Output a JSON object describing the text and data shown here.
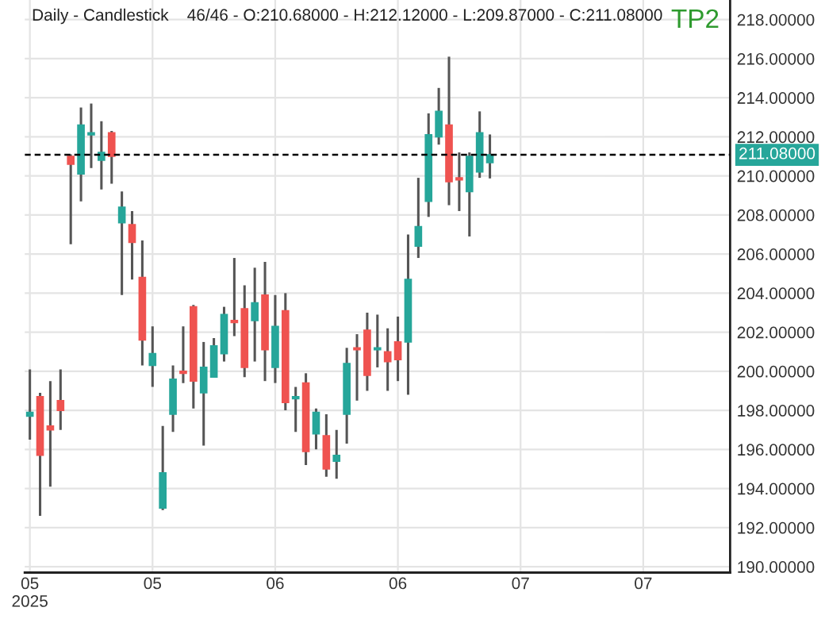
{
  "chart_data": {
    "type": "candlestick",
    "title": "Daily - Candlestick    46/46 - O:210.68000 - H:212.12000 - L:209.87000 - C:211.08000",
    "annotations": [
      "TP2"
    ],
    "categories": [
      "05\n2025",
      null,
      null,
      null,
      null,
      null,
      null,
      null,
      null,
      null,
      null,
      null,
      "05",
      null,
      null,
      null,
      null,
      null,
      null,
      null,
      null,
      null,
      null,
      null,
      "06",
      null,
      null,
      null,
      null,
      null,
      null,
      null,
      null,
      null,
      null,
      null,
      "06",
      null,
      null,
      null,
      null,
      null,
      null,
      null,
      null,
      null,
      null,
      null,
      "07",
      null,
      null,
      null,
      null,
      null,
      null,
      null,
      null,
      null,
      null,
      null,
      "07",
      null,
      null,
      null,
      null,
      null,
      null,
      null,
      null
    ],
    "ohlc": [
      [
        197.7,
        200.1,
        196.5,
        197.9
      ],
      [
        198.7,
        198.9,
        192.6,
        195.7
      ],
      [
        197.2,
        199.5,
        194.1,
        197.0
      ],
      [
        198.5,
        200.1,
        197.0,
        198.0
      ],
      [
        211.0,
        211.1,
        206.5,
        210.6
      ],
      [
        210.1,
        213.5,
        208.7,
        212.6
      ],
      [
        212.1,
        213.7,
        210.4,
        212.2
      ],
      [
        210.8,
        212.8,
        209.3,
        211.2
      ],
      [
        212.2,
        212.3,
        209.6,
        211.0
      ],
      [
        207.6,
        209.2,
        203.9,
        208.4
      ],
      [
        207.5,
        208.2,
        204.7,
        206.6
      ],
      [
        204.8,
        206.7,
        200.3,
        201.6
      ],
      [
        200.3,
        202.3,
        199.2,
        200.9
      ],
      [
        193.0,
        197.2,
        192.9,
        194.8
      ],
      [
        197.8,
        200.3,
        196.9,
        199.6
      ],
      [
        200.0,
        202.3,
        199.4,
        199.9
      ],
      [
        203.3,
        203.4,
        198.1,
        199.5
      ],
      [
        198.9,
        201.5,
        196.2,
        200.2
      ],
      [
        199.7,
        201.7,
        199.7,
        201.3
      ],
      [
        200.9,
        203.3,
        200.5,
        202.9
      ],
      [
        202.6,
        205.8,
        201.8,
        202.5
      ],
      [
        203.2,
        204.4,
        199.7,
        200.2
      ],
      [
        202.6,
        205.3,
        200.5,
        203.5
      ],
      [
        203.9,
        205.6,
        199.5,
        201.1
      ],
      [
        200.2,
        203.9,
        199.4,
        202.3
      ],
      [
        203.1,
        204.0,
        198.0,
        198.4
      ],
      [
        198.6,
        199.2,
        196.9,
        198.7
      ],
      [
        199.4,
        199.9,
        195.2,
        195.9
      ],
      [
        196.8,
        198.1,
        196.0,
        197.9
      ],
      [
        196.7,
        197.8,
        194.6,
        195.0
      ],
      [
        195.4,
        197.0,
        194.5,
        195.7
      ],
      [
        197.8,
        201.2,
        196.3,
        200.4
      ],
      [
        201.2,
        201.9,
        198.5,
        201.1
      ],
      [
        202.1,
        203.0,
        199.0,
        199.8
      ],
      [
        201.1,
        202.9,
        200.2,
        201.2
      ],
      [
        201.0,
        202.2,
        199.0,
        200.5
      ],
      [
        201.5,
        202.8,
        199.5,
        200.6
      ],
      [
        201.5,
        207.0,
        198.8,
        204.7
      ],
      [
        206.4,
        209.9,
        205.8,
        207.4
      ],
      [
        208.7,
        213.2,
        207.9,
        212.1
      ],
      [
        212.0,
        214.5,
        211.6,
        213.3
      ],
      [
        212.6,
        216.1,
        208.5,
        209.7
      ],
      [
        209.9,
        211.2,
        208.2,
        209.8
      ],
      [
        209.2,
        211.2,
        206.9,
        211.0
      ],
      [
        210.2,
        213.3,
        209.9,
        212.2
      ],
      [
        210.68,
        212.12,
        209.87,
        211.08
      ],
      null,
      null,
      null,
      null,
      null,
      null,
      null,
      null,
      null,
      null,
      null,
      null,
      null,
      null,
      null,
      null,
      null,
      null,
      null,
      null,
      null,
      null,
      null
    ],
    "colors": [
      "#26a69a",
      "#ef5350",
      "#ef5350",
      "#ef5350",
      "#ef5350",
      "#26a69a",
      "#26a69a",
      "#26a69a",
      "#ef5350",
      "#26a69a",
      "#ef5350",
      "#ef5350",
      "#26a69a",
      "#26a69a",
      "#26a69a",
      "#ef5350",
      "#ef5350",
      "#26a69a",
      "#26a69a",
      "#26a69a",
      "#ef5350",
      "#ef5350",
      "#26a69a",
      "#ef5350",
      "#26a69a",
      "#ef5350",
      "#26a69a",
      "#ef5350",
      "#26a69a",
      "#ef5350",
      "#26a69a",
      "#26a69a",
      "#ef5350",
      "#ef5350",
      "#26a69a",
      "#ef5350",
      "#ef5350",
      "#26a69a",
      "#26a69a",
      "#26a69a",
      "#26a69a",
      "#ef5350",
      "#ef5350",
      "#26a69a",
      "#26a69a",
      "#26a69a",
      null,
      null,
      null,
      null,
      null,
      null,
      null,
      null,
      null,
      null,
      null,
      null,
      null,
      null,
      null,
      null,
      null,
      null,
      null,
      null,
      null,
      null,
      null
    ],
    "ylim": [
      189.7,
      219.0
    ],
    "yticks": [
      {
        "value": 190,
        "label": "190.00000"
      },
      {
        "value": 192,
        "label": "192.00000"
      },
      {
        "value": 194,
        "label": "194.00000"
      },
      {
        "value": 196,
        "label": "196.00000"
      },
      {
        "value": 198,
        "label": "198.00000"
      },
      {
        "value": 200,
        "label": "200.00000"
      },
      {
        "value": 202,
        "label": "202.00000"
      },
      {
        "value": 204,
        "label": "204.00000"
      },
      {
        "value": 206,
        "label": "206.00000"
      },
      {
        "value": 208,
        "label": "208.00000"
      },
      {
        "value": 210,
        "label": "210.00000"
      },
      {
        "value": 212,
        "label": "212.00000"
      },
      {
        "value": 214,
        "label": "214.00000"
      },
      {
        "value": 216,
        "label": "216.00000"
      },
      {
        "value": 218,
        "label": "218.00000"
      }
    ],
    "ref_lines": [
      {
        "axis": "y",
        "value": 211.08,
        "label": "211.08000",
        "color": "#000000",
        "line_style": "dashed"
      }
    ],
    "grid": true
  }
}
